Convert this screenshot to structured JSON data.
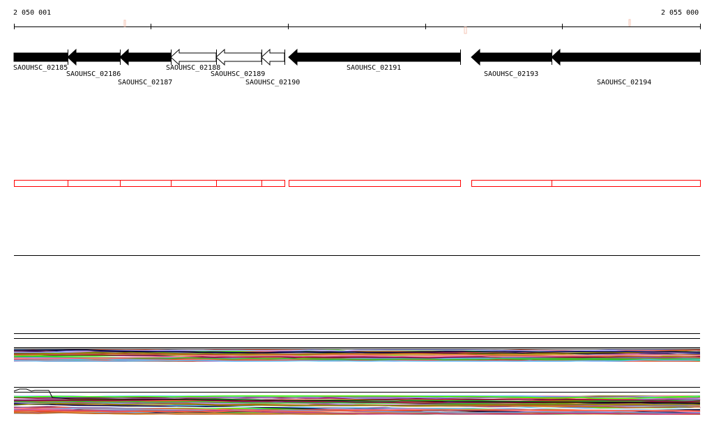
{
  "ruler": {
    "start_label": "2 050 001",
    "end_label": "2 055 000"
  },
  "genes": [
    {
      "name": "SAOUHSC_02185",
      "strand": "-",
      "fill": "#000000"
    },
    {
      "name": "SAOUHSC_02186",
      "strand": "-",
      "fill": "#000000"
    },
    {
      "name": "SAOUHSC_02187",
      "strand": "-",
      "fill": "#000000"
    },
    {
      "name": "SAOUHSC_02188",
      "strand": "-",
      "fill": "#ffffff"
    },
    {
      "name": "SAOUHSC_02189",
      "strand": "-",
      "fill": "#ffffff"
    },
    {
      "name": "SAOUHSC_02190",
      "strand": "-",
      "fill": "#ffffff"
    },
    {
      "name": "SAOUHSC_02191",
      "strand": "-",
      "fill": "#000000"
    },
    {
      "name": "SAOUHSC_02193",
      "strand": "-",
      "fill": "#000000"
    },
    {
      "name": "SAOUHSC_02194",
      "strand": "-",
      "fill": "#000000"
    }
  ],
  "colors": {
    "feature_box": "#ff0000",
    "marker": "#f4c4b4",
    "track_palette": [
      "#6fa0e0",
      "#c04080",
      "#808000",
      "#ff6040",
      "#30c030",
      "#800040",
      "#e0a040",
      "#a0a0ff",
      "#c06020",
      "#000040",
      "#ff80a0",
      "#60c0ff",
      "#a060a0",
      "#d04020",
      "#40ff00",
      "#ffffff"
    ]
  }
}
